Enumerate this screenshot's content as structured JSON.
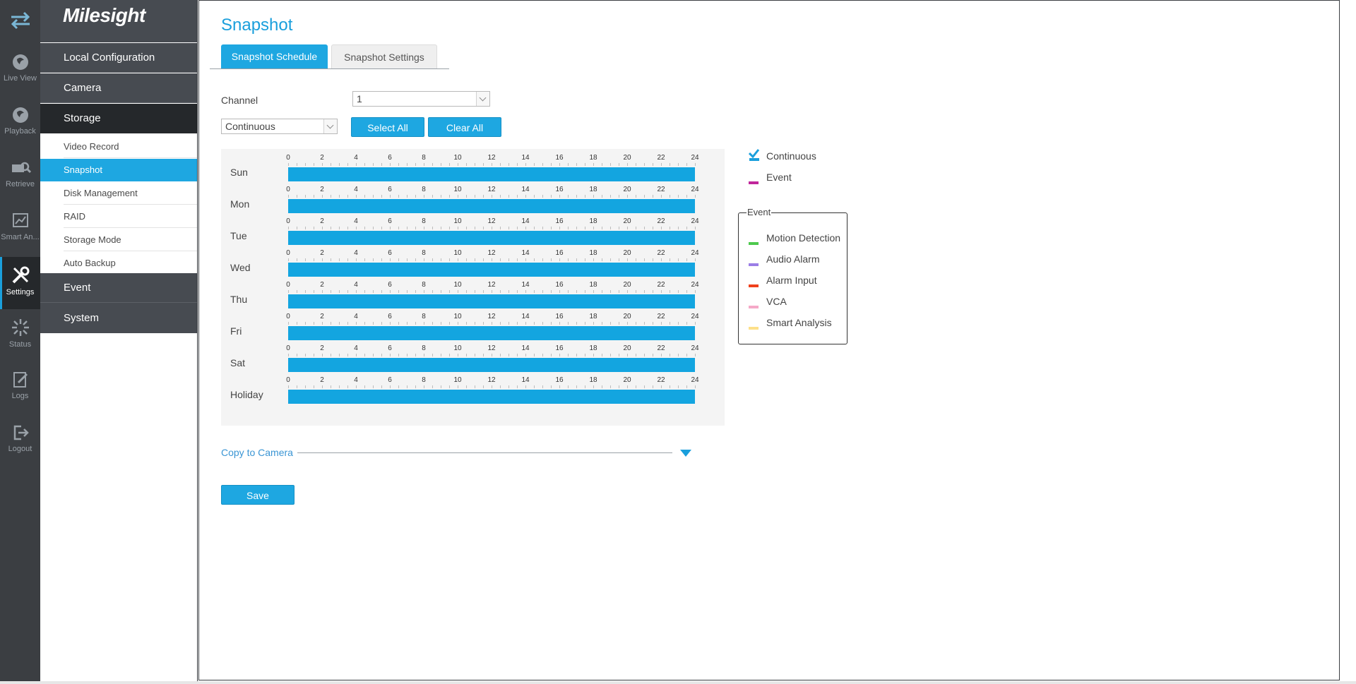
{
  "brand": {
    "logo_text": "Milesight"
  },
  "rail": {
    "items": [
      {
        "id": "switch",
        "label": ""
      },
      {
        "id": "live_view",
        "label": "Live View"
      },
      {
        "id": "playback",
        "label": "Playback"
      },
      {
        "id": "retrieve",
        "label": "Retrieve"
      },
      {
        "id": "smart_analysis",
        "label": "Smart An..."
      },
      {
        "id": "settings",
        "label": "Settings",
        "active": true
      },
      {
        "id": "status",
        "label": "Status"
      },
      {
        "id": "logs",
        "label": "Logs"
      },
      {
        "id": "logout",
        "label": "Logout"
      }
    ]
  },
  "menu": {
    "sections": [
      {
        "label": "Local Configuration"
      },
      {
        "label": "Camera"
      },
      {
        "label": "Storage",
        "active": true
      },
      {
        "label": "Event"
      },
      {
        "label": "System"
      }
    ],
    "storage_items": [
      {
        "label": "Video Record"
      },
      {
        "label": "Snapshot",
        "active": true
      },
      {
        "label": "Disk Management"
      },
      {
        "label": "RAID"
      },
      {
        "label": "Storage Mode"
      },
      {
        "label": "Auto Backup"
      }
    ]
  },
  "page": {
    "title": "Snapshot",
    "tabs": [
      {
        "label": "Snapshot Schedule",
        "active": true
      },
      {
        "label": "Snapshot Settings"
      }
    ],
    "channel_label": "Channel",
    "channel_value": "1",
    "mode_value": "Continuous",
    "select_all_label": "Select All",
    "clear_all_label": "Clear All",
    "copy_to_camera_label": "Copy to Camera",
    "save_label": "Save"
  },
  "schedule": {
    "hour_labels": [
      "0",
      "2",
      "4",
      "6",
      "8",
      "10",
      "12",
      "14",
      "16",
      "18",
      "20",
      "22",
      "24"
    ],
    "days": [
      {
        "name": "Sun",
        "ranges": [
          [
            0,
            24
          ]
        ]
      },
      {
        "name": "Mon",
        "ranges": [
          [
            0,
            24
          ]
        ]
      },
      {
        "name": "Tue",
        "ranges": [
          [
            0,
            24
          ]
        ]
      },
      {
        "name": "Wed",
        "ranges": [
          [
            0,
            24
          ]
        ]
      },
      {
        "name": "Thu",
        "ranges": [
          [
            0,
            24
          ]
        ]
      },
      {
        "name": "Fri",
        "ranges": [
          [
            0,
            24
          ]
        ]
      },
      {
        "name": "Sat",
        "ranges": [
          [
            0,
            24
          ]
        ]
      },
      {
        "name": "Holiday",
        "ranges": [
          [
            0,
            24
          ]
        ]
      }
    ],
    "fill_color": "#13a5e0"
  },
  "legend": {
    "continuous": {
      "label": "Continuous",
      "color": "#1a9fdc",
      "checked": true
    },
    "event": {
      "label": "Event",
      "color": "#c0269b"
    },
    "event_box_title": "Event",
    "event_types": [
      {
        "label": "Motion Detection",
        "color": "#4dc94d"
      },
      {
        "label": "Audio Alarm",
        "color": "#9b7ee6"
      },
      {
        "label": "Alarm Input",
        "color": "#f0401c"
      },
      {
        "label": "VCA",
        "color": "#f5a9c8"
      },
      {
        "label": "Smart Analysis",
        "color": "#fde08a"
      }
    ]
  }
}
